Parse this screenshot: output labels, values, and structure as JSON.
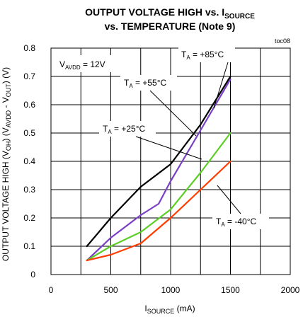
{
  "chart_data": {
    "type": "line",
    "title_line1_main": "OUTPUT VOLTAGE HIGH vs. I",
    "title_line1_sub": "SOURCE",
    "title_line2": "vs. TEMPERATURE (Note 9)",
    "figure_code": "toc08",
    "xlabel_main": "I",
    "xlabel_sub": "SOURCE",
    "xlabel_unit": " (mA)",
    "ylabel": {
      "p1": "OUTPUT VOLTAGE HIGH (V",
      "s1": "OH",
      "p2": ") (V",
      "s2": "AVDD",
      "p3": " - V",
      "s3": "OUT",
      "p4": ") (V)"
    },
    "xlim": [
      0,
      2000
    ],
    "ylim": [
      0,
      0.8
    ],
    "xticks": [
      0,
      500,
      1000,
      1500,
      2000
    ],
    "yticks": [
      0,
      0.1,
      0.2,
      0.3,
      0.4,
      0.5,
      0.6,
      0.7,
      0.8
    ],
    "xtick_labels": [
      "0",
      "500",
      "1000",
      "1500",
      "2000"
    ],
    "ytick_labels": [
      "0",
      "0.1",
      "0.2",
      "0.3",
      "0.4",
      "0.5",
      "0.6",
      "0.7",
      "0.8"
    ],
    "grid": true,
    "supply_label": {
      "main": "V",
      "sub": "AVDD",
      "rest": " = 12V"
    },
    "series": [
      {
        "name": "T_A = +85°C",
        "color": "#000000",
        "x": [
          300,
          500,
          750,
          1000,
          1250,
          1500
        ],
        "y": [
          0.1,
          0.2,
          0.31,
          0.39,
          0.53,
          0.7
        ]
      },
      {
        "name": "T_A = +55°C",
        "color": "#7a3fc4",
        "x": [
          300,
          500,
          750,
          900,
          1000,
          1250,
          1500
        ],
        "y": [
          0.05,
          0.13,
          0.21,
          0.25,
          0.33,
          0.51,
          0.69
        ]
      },
      {
        "name": "T_A = +25°C",
        "color": "#5bcf24",
        "x": [
          300,
          500,
          750,
          1000,
          1250,
          1500
        ],
        "y": [
          0.05,
          0.1,
          0.15,
          0.23,
          0.36,
          0.5
        ]
      },
      {
        "name": "T_A = -40°C",
        "color": "#ff3d00",
        "x": [
          300,
          500,
          750,
          1000,
          1250,
          1500
        ],
        "y": [
          0.05,
          0.07,
          0.11,
          0.2,
          0.3,
          0.4
        ]
      }
    ],
    "annotations": [
      {
        "pre": "T",
        "sub": "A",
        "post": " = +85°C"
      },
      {
        "pre": "T",
        "sub": "A",
        "post": " = +55°C"
      },
      {
        "pre": "T",
        "sub": "A",
        "post": " = +25°C"
      },
      {
        "pre": "T",
        "sub": "A",
        "post": " = -40°C"
      }
    ]
  }
}
